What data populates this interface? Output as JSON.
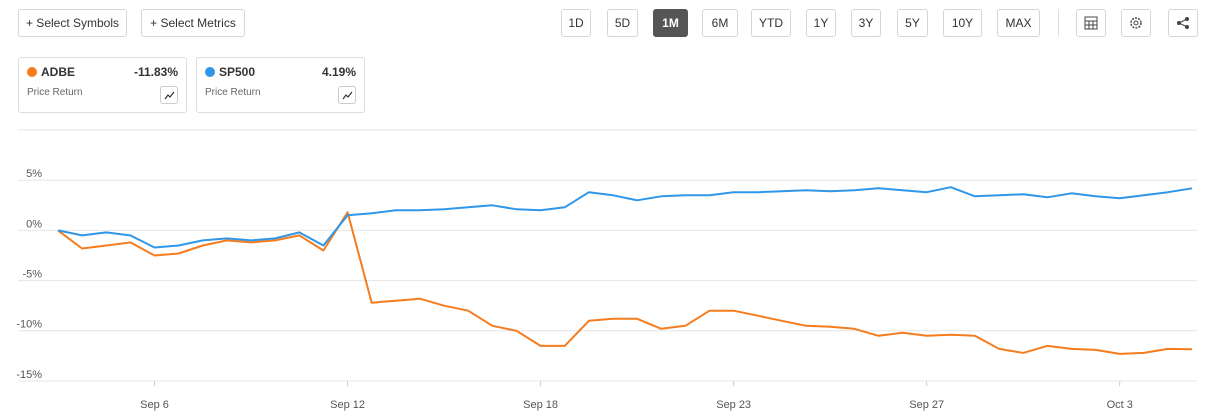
{
  "toolbar": {
    "left_buttons": [
      "+ Select Symbols",
      "+ Select Metrics"
    ],
    "ranges": [
      "1D",
      "5D",
      "1M",
      "6M",
      "YTD",
      "1Y",
      "3Y",
      "5Y",
      "10Y",
      "MAX"
    ],
    "active_range": "1M"
  },
  "chart_data": {
    "type": "line",
    "categories": [
      null,
      null,
      null,
      null,
      "Sep 6",
      null,
      null,
      null,
      null,
      null,
      null,
      null,
      "Sep 12",
      null,
      null,
      null,
      null,
      null,
      null,
      null,
      "Sep 18",
      null,
      null,
      null,
      null,
      null,
      null,
      null,
      "Sep 23",
      null,
      null,
      null,
      null,
      null,
      null,
      null,
      "Sep 27",
      null,
      null,
      null,
      null,
      null,
      null,
      null,
      "Oct 3",
      null,
      null,
      null
    ],
    "series": [
      {
        "name": "ADBE",
        "color": "#f57c1f",
        "metric": "Price Return",
        "return_label": "-11.83%",
        "values": [
          0,
          -1.8,
          -1.5,
          -1.2,
          -2.5,
          -2.3,
          -1.5,
          -1.0,
          -1.2,
          -1.0,
          -0.5,
          -2.0,
          1.8,
          -7.2,
          -7.0,
          -6.8,
          -7.5,
          -8.0,
          -9.5,
          -10.0,
          -11.5,
          -11.5,
          -9.0,
          -8.8,
          -8.8,
          -9.8,
          -9.5,
          -8.0,
          -8.0,
          -8.5,
          -9.0,
          -9.5,
          -9.6,
          -9.8,
          -10.5,
          -10.2,
          -10.5,
          -10.4,
          -10.5,
          -11.8,
          -12.2,
          -11.5,
          -11.8,
          -11.9,
          -12.3,
          -12.2,
          -11.8,
          -11.83
        ]
      },
      {
        "name": "SP500",
        "color": "#2f96e8",
        "metric": "Price Return",
        "return_label": "4.19%",
        "values": [
          0,
          -0.5,
          -0.2,
          -0.5,
          -1.7,
          -1.5,
          -1.0,
          -0.8,
          -1.0,
          -0.8,
          -0.2,
          -1.5,
          1.5,
          1.7,
          2.0,
          2.0,
          2.1,
          2.3,
          2.5,
          2.1,
          2.0,
          2.3,
          3.8,
          3.5,
          3.0,
          3.4,
          3.5,
          3.5,
          3.8,
          3.8,
          3.9,
          4.0,
          3.9,
          4.0,
          4.2,
          4.0,
          3.8,
          4.3,
          3.4,
          3.5,
          3.6,
          3.3,
          3.7,
          3.4,
          3.2,
          3.5,
          3.8,
          4.19
        ]
      }
    ],
    "ylim": [
      -15,
      10
    ],
    "yticks": [
      {
        "value": -15,
        "label": "-15%"
      },
      {
        "value": -10,
        "label": "-10%"
      },
      {
        "value": -5,
        "label": "-5%"
      },
      {
        "value": 0,
        "label": "0%"
      },
      {
        "value": 5,
        "label": "5%"
      }
    ],
    "grid": true
  }
}
